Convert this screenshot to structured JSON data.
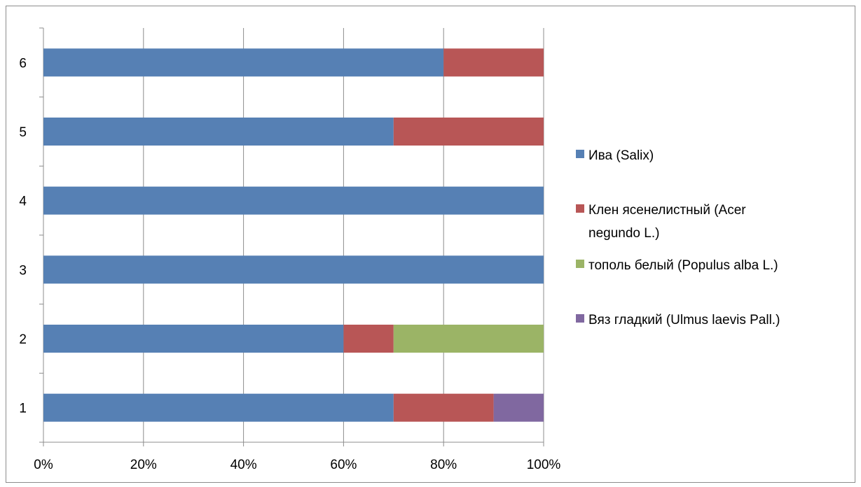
{
  "chart_data": {
    "type": "bar",
    "orientation": "horizontal",
    "stacked": "percent",
    "categories": [
      "1",
      "2",
      "3",
      "4",
      "5",
      "6"
    ],
    "series": [
      {
        "name": "Ива (Salix)",
        "legend_lines": [
          "Ива (Salix)"
        ],
        "color": "#5680b4",
        "values": [
          70,
          60,
          100,
          100,
          70,
          80
        ]
      },
      {
        "name": "Клен ясенелистный (Acer negundo L.)",
        "legend_lines": [
          "Клен ясенелистный (Acer",
          "negundo L.)"
        ],
        "color": "#b85656",
        "values": [
          20,
          10,
          0,
          0,
          30,
          20
        ]
      },
      {
        "name": "тополь белый  (Populus alba L.)",
        "legend_lines": [
          "тополь белый  (Populus alba L.)"
        ],
        "color": "#9bb466",
        "values": [
          0,
          30,
          0,
          0,
          0,
          0
        ]
      },
      {
        "name": "Вяз гладкий (Ulmus laevis Pall.)",
        "legend_lines": [
          "Вяз гладкий (Ulmus laevis Pall.)"
        ],
        "color": "#8068a0",
        "values": [
          10,
          0,
          0,
          0,
          0,
          0
        ]
      }
    ],
    "x_ticks": [
      "0%",
      "20%",
      "40%",
      "60%",
      "80%",
      "100%"
    ],
    "xlim": [
      0,
      100
    ],
    "grid": "vertical",
    "legend_position": "right",
    "title": "",
    "xlabel": "",
    "ylabel": ""
  }
}
